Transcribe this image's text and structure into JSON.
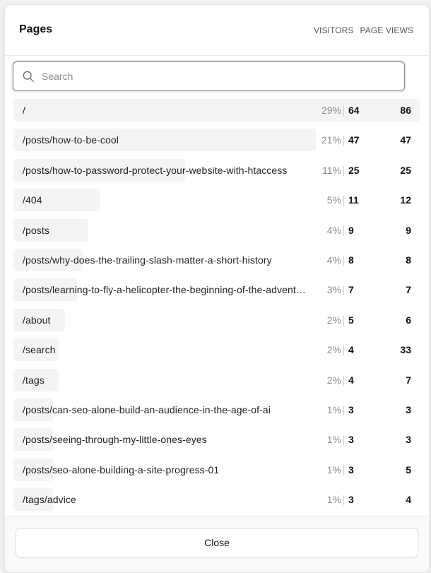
{
  "header": {
    "title": "Pages",
    "visitors_label": "VISITORS",
    "page_views_label": "PAGE VIEWS"
  },
  "search": {
    "placeholder": "Search",
    "value": ""
  },
  "rows": [
    {
      "path": "/",
      "percent": "29%",
      "visitors": "64",
      "views": "86",
      "share": 1.0
    },
    {
      "path": "/posts/how-to-be-cool",
      "percent": "21%",
      "visitors": "47",
      "views": "47",
      "share": 0.73
    },
    {
      "path": "/posts/how-to-password-protect-your-website-with-htaccess",
      "percent": "11%",
      "visitors": "25",
      "views": "25",
      "share": 0.39
    },
    {
      "path": "/404",
      "percent": "5%",
      "visitors": "11",
      "views": "12",
      "share": 0.17
    },
    {
      "path": "/posts",
      "percent": "4%",
      "visitors": "9",
      "views": "9",
      "share": 0.14
    },
    {
      "path": "/posts/why-does-the-trailing-slash-matter-a-short-history",
      "percent": "4%",
      "visitors": "8",
      "views": "8",
      "share": 0.125
    },
    {
      "path": "/posts/learning-to-fly-a-helicopter-the-beginning-of-the-adventure",
      "percent": "3%",
      "visitors": "7",
      "views": "7",
      "share": 0.11
    },
    {
      "path": "/about",
      "percent": "2%",
      "visitors": "5",
      "views": "6",
      "share": 0.078
    },
    {
      "path": "/search",
      "percent": "2%",
      "visitors": "4",
      "views": "33",
      "share": 0.0625
    },
    {
      "path": "/tags",
      "percent": "2%",
      "visitors": "4",
      "views": "7",
      "share": 0.0625
    },
    {
      "path": "/posts/can-seo-alone-build-an-audience-in-the-age-of-ai",
      "percent": "1%",
      "visitors": "3",
      "views": "3",
      "share": 0.047
    },
    {
      "path": "/posts/seeing-through-my-little-ones-eyes",
      "percent": "1%",
      "visitors": "3",
      "views": "3",
      "share": 0.047
    },
    {
      "path": "/posts/seo-alone-building-a-site-progress-01",
      "percent": "1%",
      "visitors": "3",
      "views": "5",
      "share": 0.047
    },
    {
      "path": "/tags/advice",
      "percent": "1%",
      "visitors": "3",
      "views": "4",
      "share": 0.047
    }
  ],
  "footer": {
    "close_label": "Close"
  },
  "colors": {
    "bar": "#f4f4f4",
    "accent_text": "#111111",
    "muted_text": "#8c8c8c"
  }
}
